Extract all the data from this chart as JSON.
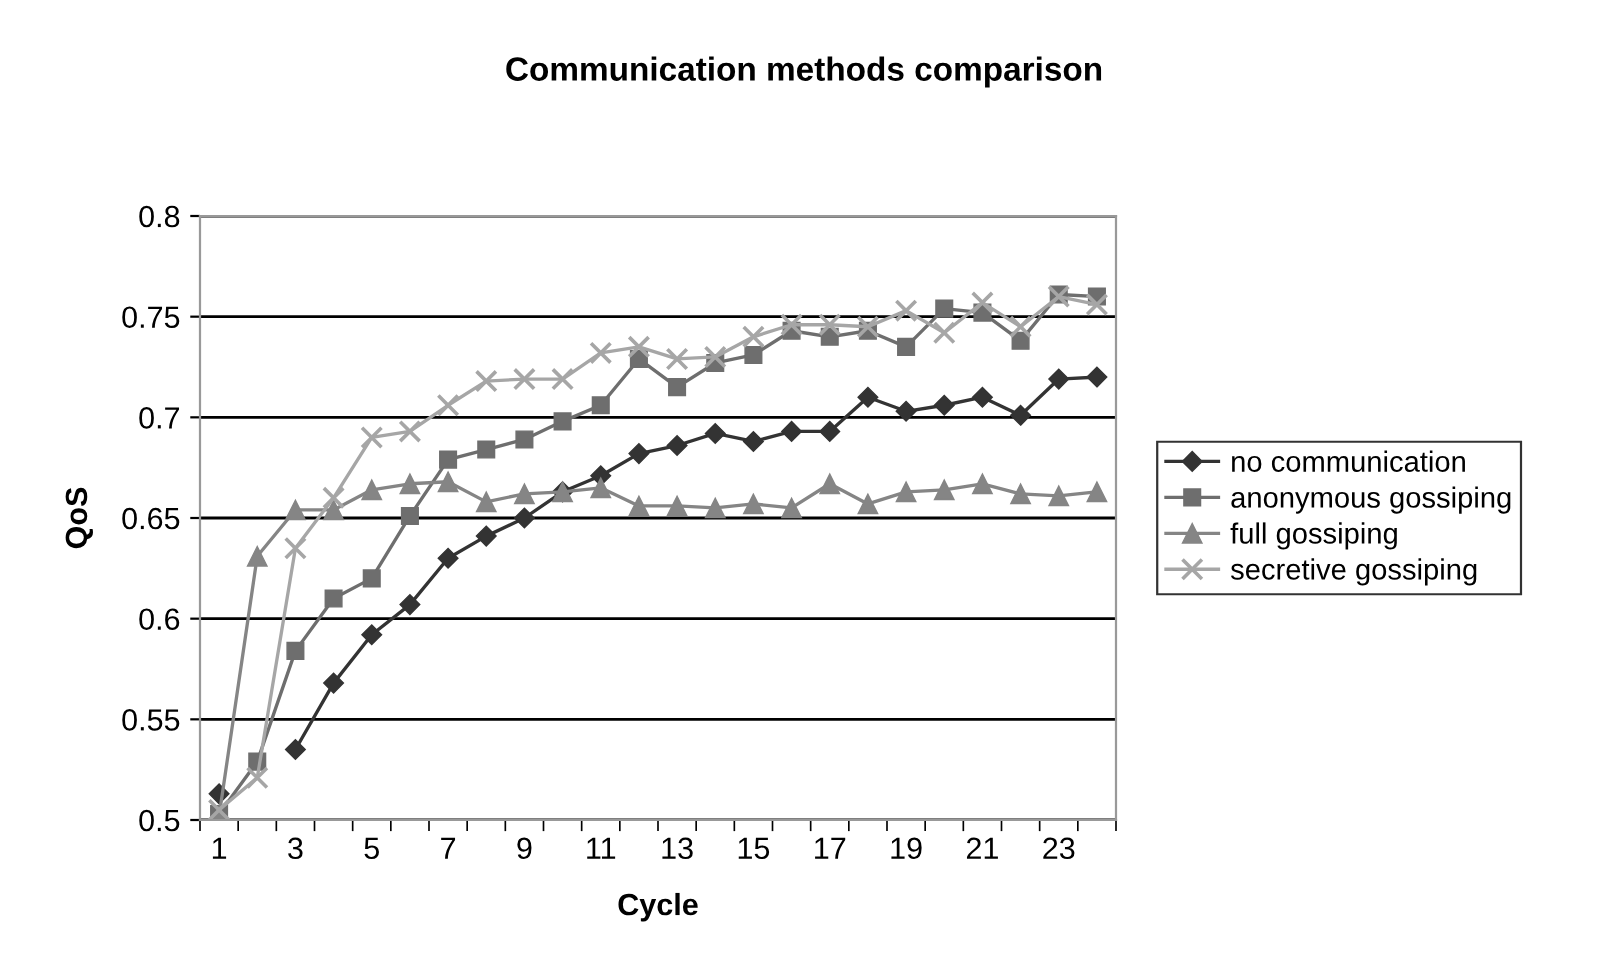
{
  "chart_data": {
    "type": "line",
    "title": "Communication methods comparison",
    "xlabel": "Cycle",
    "ylabel": "QoS",
    "categories": [
      "1",
      null,
      "3",
      null,
      "5",
      null,
      "7",
      null,
      "9",
      null,
      "11",
      null,
      "13",
      null,
      "15",
      null,
      "17",
      null,
      "19",
      null,
      "21",
      null,
      "23",
      null
    ],
    "series": [
      {
        "name": "no communication",
        "color": "#333333",
        "marker": "diamond",
        "values": [
          0.513,
          null,
          0.535,
          0.568,
          0.592,
          0.607,
          0.63,
          0.641,
          0.65,
          0.663,
          0.671,
          0.682,
          0.686,
          0.692,
          0.688,
          0.693,
          0.693,
          0.71,
          0.703,
          0.706,
          0.71,
          0.701,
          0.719,
          0.72
        ]
      },
      {
        "name": "anonymous gossiping",
        "color": "#6e6e6e",
        "marker": "square",
        "values": [
          0.503,
          0.529,
          0.584,
          0.61,
          0.62,
          0.651,
          0.679,
          0.684,
          0.689,
          0.698,
          0.706,
          0.729,
          0.715,
          0.727,
          0.731,
          0.743,
          0.74,
          0.743,
          0.735,
          0.754,
          0.752,
          0.738,
          0.761,
          0.76
        ]
      },
      {
        "name": "full gossiping",
        "color": "#858585",
        "marker": "triangle",
        "values": [
          0.502,
          0.631,
          0.654,
          0.654,
          0.664,
          0.667,
          0.668,
          0.658,
          0.662,
          0.663,
          0.665,
          0.656,
          0.656,
          0.655,
          0.657,
          0.655,
          0.667,
          0.657,
          0.663,
          0.664,
          0.667,
          0.662,
          0.661,
          0.663
        ]
      },
      {
        "name": "secretive gossiping",
        "color": "#a6a6a6",
        "marker": "cross",
        "values": [
          0.505,
          0.521,
          0.635,
          0.66,
          0.69,
          0.693,
          0.706,
          0.718,
          0.719,
          0.719,
          0.732,
          0.735,
          0.729,
          0.73,
          0.74,
          0.746,
          0.746,
          0.745,
          0.753,
          0.742,
          0.757,
          0.745,
          0.76,
          0.756
        ]
      }
    ],
    "ylim": [
      0.5,
      0.8
    ],
    "yticks": [
      {
        "value": 0.5,
        "label": "0.5"
      },
      {
        "value": 0.55,
        "label": "0.55"
      },
      {
        "value": 0.6,
        "label": "0.6"
      },
      {
        "value": 0.65,
        "label": "0.65"
      },
      {
        "value": 0.7,
        "label": "0.7"
      },
      {
        "value": 0.75,
        "label": "0.75"
      },
      {
        "value": 0.8,
        "label": "0.8"
      }
    ],
    "grid": "y",
    "legend": "right",
    "line_style": "solid"
  }
}
